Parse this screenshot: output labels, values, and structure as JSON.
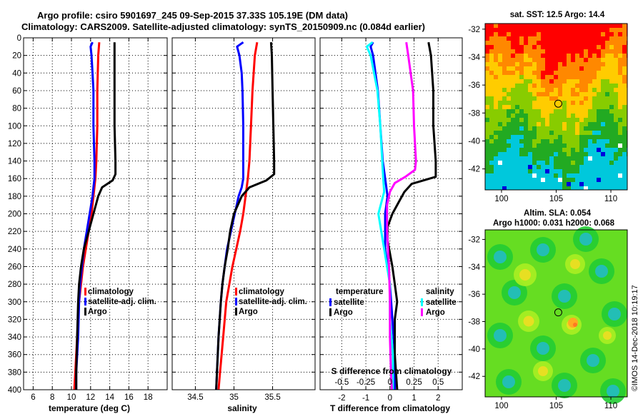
{
  "title": {
    "line1": "Argo profile: csiro 5901697_245 09-Sep-2015 37.33S 105.19E (DM data)",
    "line2": "Climatology: CARS2009. Satellite-adjusted climatology: synTS_20150909.nc (0.084d earlier)"
  },
  "colors": {
    "climatology": "#ff0000",
    "satellite": "#0000ff",
    "argo": "#000000",
    "sat_salinity": "#00ffff",
    "argo_salinity": "#ff00ff",
    "sst_palette": [
      "#ff0000",
      "#ff8800",
      "#ffcc00",
      "#88cc00",
      "#22aa22",
      "#00c8dc",
      "#ffffff"
    ],
    "sla_palette": [
      "#22cc33",
      "#66dd22",
      "#aaee22",
      "#eedd22",
      "#ffaa22",
      "#ff7722"
    ],
    "sla_eddy": "#22bbcc"
  },
  "chart_data": [
    {
      "type": "line",
      "name": "temperature",
      "xlabel": "temperature (deg C)",
      "ylabel": "",
      "xlim": [
        5,
        20
      ],
      "ylim": [
        400,
        0
      ],
      "xticks": [
        6,
        8,
        10,
        12,
        14,
        16,
        18
      ],
      "yticks": [
        0,
        20,
        40,
        60,
        80,
        100,
        120,
        140,
        160,
        180,
        200,
        220,
        240,
        260,
        280,
        300,
        320,
        340,
        360,
        380,
        400
      ],
      "grid": true,
      "legend": {
        "position": "middle-right",
        "entries": [
          "climatology",
          "satellite-adj. clim.",
          "Argo"
        ]
      },
      "series": [
        {
          "name": "climatology",
          "color": "red",
          "depth": [
            5,
            20,
            60,
            100,
            140,
            160,
            180,
            200,
            220,
            240,
            260,
            280,
            300,
            340,
            380,
            400
          ],
          "values": [
            12.9,
            12.8,
            12.7,
            12.7,
            12.6,
            12.5,
            12.3,
            12.1,
            11.8,
            11.5,
            11.2,
            11.0,
            10.8,
            10.6,
            10.4,
            10.3
          ]
        },
        {
          "name": "satellite-adj. clim.",
          "color": "blue",
          "depth": [
            5,
            10,
            20,
            40,
            60,
            100,
            140,
            160,
            170,
            180,
            200,
            220,
            240,
            260,
            280,
            300,
            340,
            380,
            400
          ],
          "values": [
            12.2,
            12.0,
            12.1,
            12.2,
            12.3,
            12.3,
            12.4,
            12.4,
            12.3,
            12.2,
            11.9,
            11.6,
            11.3,
            11.1,
            10.9,
            10.8,
            10.7,
            10.5,
            10.5
          ]
        },
        {
          "name": "Argo",
          "color": "black",
          "depth": [
            5,
            20,
            60,
            100,
            140,
            155,
            162,
            170,
            180,
            200,
            220,
            240,
            260,
            280,
            300,
            340,
            380,
            400
          ],
          "values": [
            14.5,
            14.5,
            14.5,
            14.5,
            14.6,
            14.6,
            14.3,
            13.2,
            12.8,
            12.3,
            11.8,
            11.3,
            11.0,
            10.8,
            10.7,
            10.6,
            10.5,
            10.5
          ]
        }
      ]
    },
    {
      "type": "line",
      "name": "salinity",
      "xlabel": "salinity",
      "ylabel": "",
      "xlim": [
        34.2,
        36.05
      ],
      "ylim": [
        400,
        0
      ],
      "xticks": [
        34.5,
        35,
        35.5
      ],
      "xticklabels": [
        "34.5",
        "35",
        "35.5"
      ],
      "grid": true,
      "legend": {
        "position": "middle-right",
        "entries": [
          "climatology",
          "satellite-adj. clim.",
          "Argo"
        ]
      },
      "series": [
        {
          "name": "climatology",
          "color": "red",
          "depth": [
            5,
            20,
            60,
            100,
            140,
            160,
            180,
            200,
            220,
            240,
            260,
            280,
            300,
            340,
            380,
            400
          ],
          "values": [
            35.3,
            35.27,
            35.24,
            35.22,
            35.2,
            35.18,
            35.15,
            35.12,
            35.08,
            35.03,
            34.98,
            34.94,
            34.9,
            34.86,
            34.82,
            34.8
          ]
        },
        {
          "name": "satellite-adj. clim.",
          "color": "blue",
          "depth": [
            5,
            10,
            20,
            40,
            60,
            100,
            140,
            160,
            170,
            180,
            200,
            220,
            240,
            260,
            280,
            300,
            340,
            380,
            400
          ],
          "values": [
            35.12,
            35.04,
            35.07,
            35.1,
            35.11,
            35.12,
            35.12,
            35.12,
            35.1,
            35.06,
            35.01,
            34.96,
            34.91,
            34.88,
            34.85,
            34.83,
            34.8,
            34.78,
            34.77
          ]
        },
        {
          "name": "Argo",
          "color": "black",
          "depth": [
            5,
            20,
            60,
            100,
            140,
            155,
            162,
            170,
            180,
            200,
            220,
            240,
            260,
            280,
            300,
            340,
            380,
            400
          ],
          "values": [
            35.48,
            35.49,
            35.5,
            35.51,
            35.52,
            35.52,
            35.42,
            35.2,
            35.1,
            35.0,
            34.95,
            34.92,
            34.88,
            34.85,
            34.83,
            34.8,
            34.78,
            34.77
          ]
        }
      ]
    },
    {
      "type": "line",
      "name": "differences",
      "xlabel": "T difference from climatology",
      "xlabel_top": "S difference from climatology",
      "xlim": [
        -2.9,
        3.0
      ],
      "ylim": [
        400,
        0
      ],
      "xticks": [
        -2,
        -1,
        0,
        1,
        2
      ],
      "xticks_S": [
        -0.5,
        -0.25,
        0,
        0.25,
        0.5
      ],
      "xticklabels_S": [
        "-0.5",
        "-0.25",
        "0",
        "0.25",
        "0.5"
      ],
      "grid": true,
      "legend": {
        "position": "lower-middle",
        "temperature_title": "temperature",
        "salinity_title": "salinity",
        "temperature_entries": [
          "satellite",
          "Argo"
        ],
        "salinity_entries": [
          "satellite",
          "Argo"
        ]
      },
      "series": [
        {
          "name": "temperature satellite",
          "color": "blue",
          "depth": [
            5,
            10,
            20,
            60,
            100,
            140,
            160,
            180,
            200,
            240,
            280,
            320,
            360,
            400
          ],
          "values": [
            -0.7,
            -0.8,
            -0.7,
            -0.5,
            -0.4,
            -0.3,
            -0.2,
            -0.1,
            -0.2,
            -0.2,
            0.0,
            0.1,
            0.2,
            0.2
          ]
        },
        {
          "name": "temperature Argo",
          "color": "black",
          "depth": [
            5,
            20,
            60,
            100,
            140,
            158,
            166,
            175,
            185,
            200,
            215,
            230,
            260,
            280,
            300,
            320,
            360,
            400
          ],
          "values": [
            1.6,
            1.7,
            1.8,
            1.8,
            1.9,
            1.9,
            0.9,
            0.6,
            0.4,
            0.1,
            -0.1,
            -0.1,
            0.1,
            0.2,
            0.3,
            0.2,
            0.2,
            0.3
          ]
        },
        {
          "name": "salinity satellite",
          "color": "cyan",
          "depth": [
            5,
            10,
            20,
            60,
            100,
            140,
            160,
            175,
            200,
            240,
            280,
            320,
            360,
            400
          ],
          "values": [
            -0.18,
            -0.24,
            -0.2,
            -0.13,
            -0.1,
            -0.08,
            -0.07,
            -0.06,
            -0.12,
            -0.06,
            0.0,
            0.0,
            0.03,
            0.03
          ]
        },
        {
          "name": "salinity Argo",
          "color": "magenta",
          "depth": [
            5,
            20,
            60,
            100,
            140,
            150,
            158,
            165,
            175,
            190,
            220,
            260,
            300,
            340,
            380,
            400
          ],
          "values": [
            0.17,
            0.19,
            0.24,
            0.25,
            0.27,
            0.26,
            0.16,
            0.05,
            0.0,
            -0.03,
            -0.03,
            -0.01,
            0.0,
            0.0,
            0.01,
            0.02
          ]
        }
      ]
    },
    {
      "type": "heatmap",
      "name": "sst-map",
      "title": "sat. SST: 12.5 Argo: 14.4",
      "xlim": [
        98.5,
        111.5
      ],
      "ylim": [
        -43.5,
        -31.6
      ],
      "xticks": [
        100,
        105,
        110
      ],
      "yticks": [
        -32,
        -34,
        -36,
        -38,
        -40,
        -42
      ],
      "marker": {
        "lon": 105.19,
        "lat": -37.33
      }
    },
    {
      "type": "heatmap",
      "name": "sla-map",
      "title": "Altim. SLA: 0.054",
      "subtitle": "Argo h1000: 0.031 h2000: 0.068",
      "xlim": [
        98.5,
        111.5
      ],
      "ylim": [
        -43.5,
        -31.3
      ],
      "xticks": [
        100,
        105,
        110
      ],
      "yticks": [
        -32,
        -34,
        -36,
        -38,
        -40,
        -42
      ],
      "marker": {
        "lon": 105.19,
        "lat": -37.33
      }
    }
  ],
  "credit": "©IMOS 14-Dec-2018 10:19:17"
}
